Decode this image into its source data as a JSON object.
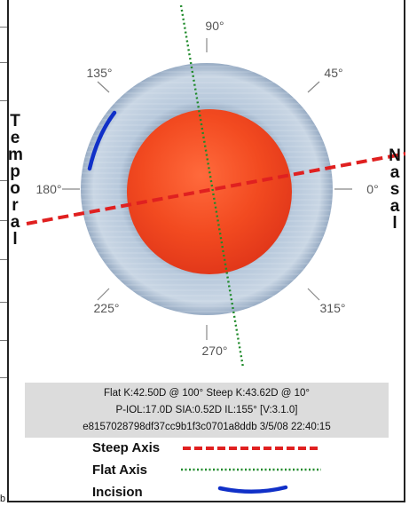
{
  "angles": {
    "a90": "90°",
    "a45": "45°",
    "a135": "135°",
    "a180": "180°",
    "a0": "0°",
    "a225": "225°",
    "a315": "315°",
    "a270": "270°"
  },
  "side_labels": {
    "temporal": [
      "T",
      "e",
      "m",
      "p",
      "o",
      "r",
      "a",
      "l"
    ],
    "nasal": [
      "N",
      "a",
      "s",
      "a",
      "l"
    ]
  },
  "info": {
    "line1": "Flat K:42.50D @ 100°  Steep K:43.62D @ 10°",
    "line2": "P-IOL:17.0D SIA:0.52D IL:155°  [V:3.1.0]",
    "line3": "e8157028798df37cc9b1f3c0701a8ddb 3/5/08 22:40:15"
  },
  "legend": {
    "steep_label": "Steep Axis",
    "flat_label": "Flat Axis",
    "incision_label": "Incision"
  },
  "corner_text": "b",
  "colors": {
    "steep_axis": "#e02020",
    "flat_axis": "#1f8a2a",
    "incision": "#1030c8",
    "pupil": "#f04a22",
    "iris": "#a9bdd2"
  }
}
